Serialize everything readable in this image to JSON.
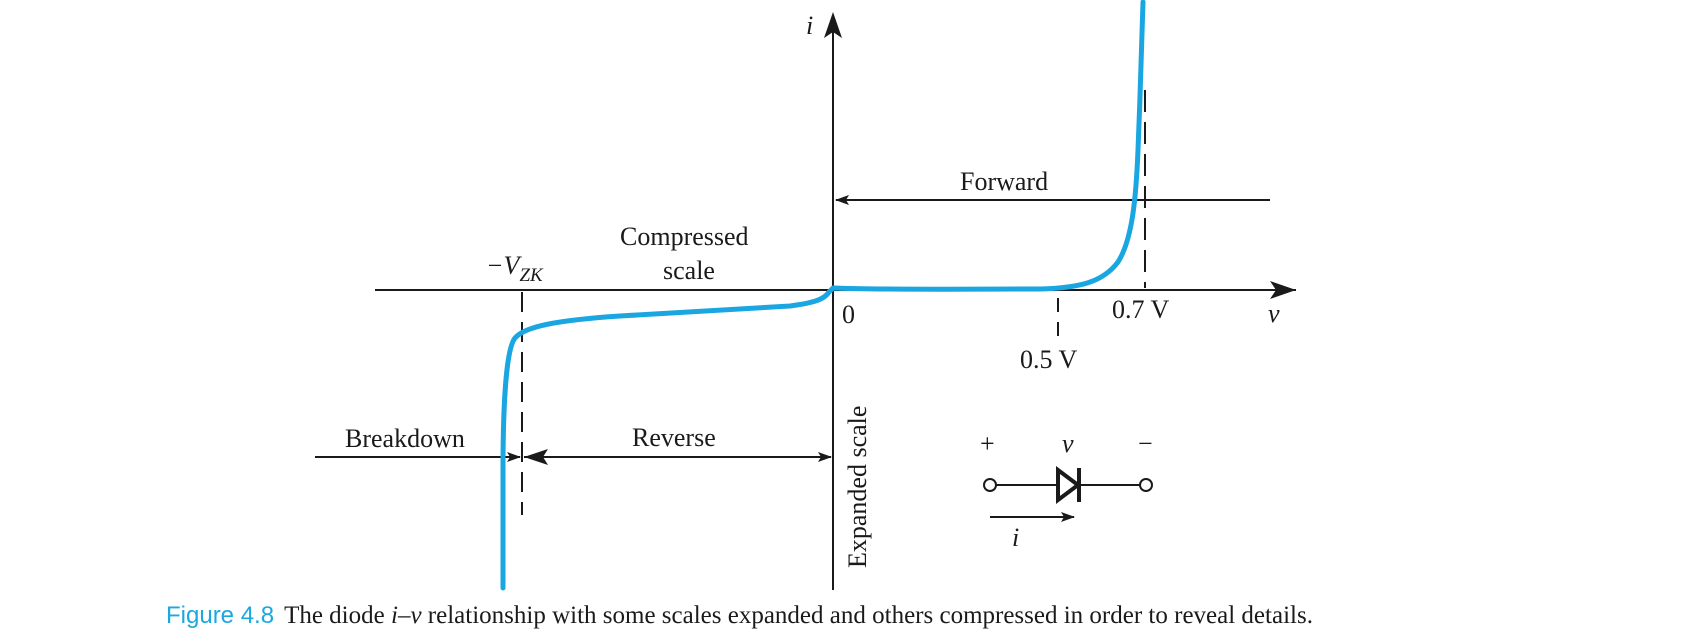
{
  "colors": {
    "curve": "#1aa7e1",
    "ink": "#1a1a1a",
    "figure_label": "#19a8e0"
  },
  "labels": {
    "i_axis": "i",
    "v_axis": "v",
    "origin": "0",
    "forward": "Forward",
    "compressed_1": "Compressed",
    "compressed_2": "scale",
    "vzk_prefix": "−V",
    "vzk_sub": "ZK",
    "v07": "0.7 V",
    "v05": "0.5 V",
    "breakdown": "Breakdown",
    "reverse": "Reverse",
    "expanded": "Expanded scale"
  },
  "symbol": {
    "plus": "+",
    "minus": "−",
    "v": "v",
    "i": "i"
  },
  "caption": {
    "label": "Figure 4.8",
    "pre": "The diode ",
    "var_i": "i",
    "dash": "–",
    "var_v": "v",
    "post": "  relationship with some scales expanded and others compressed in order to reveal details."
  }
}
